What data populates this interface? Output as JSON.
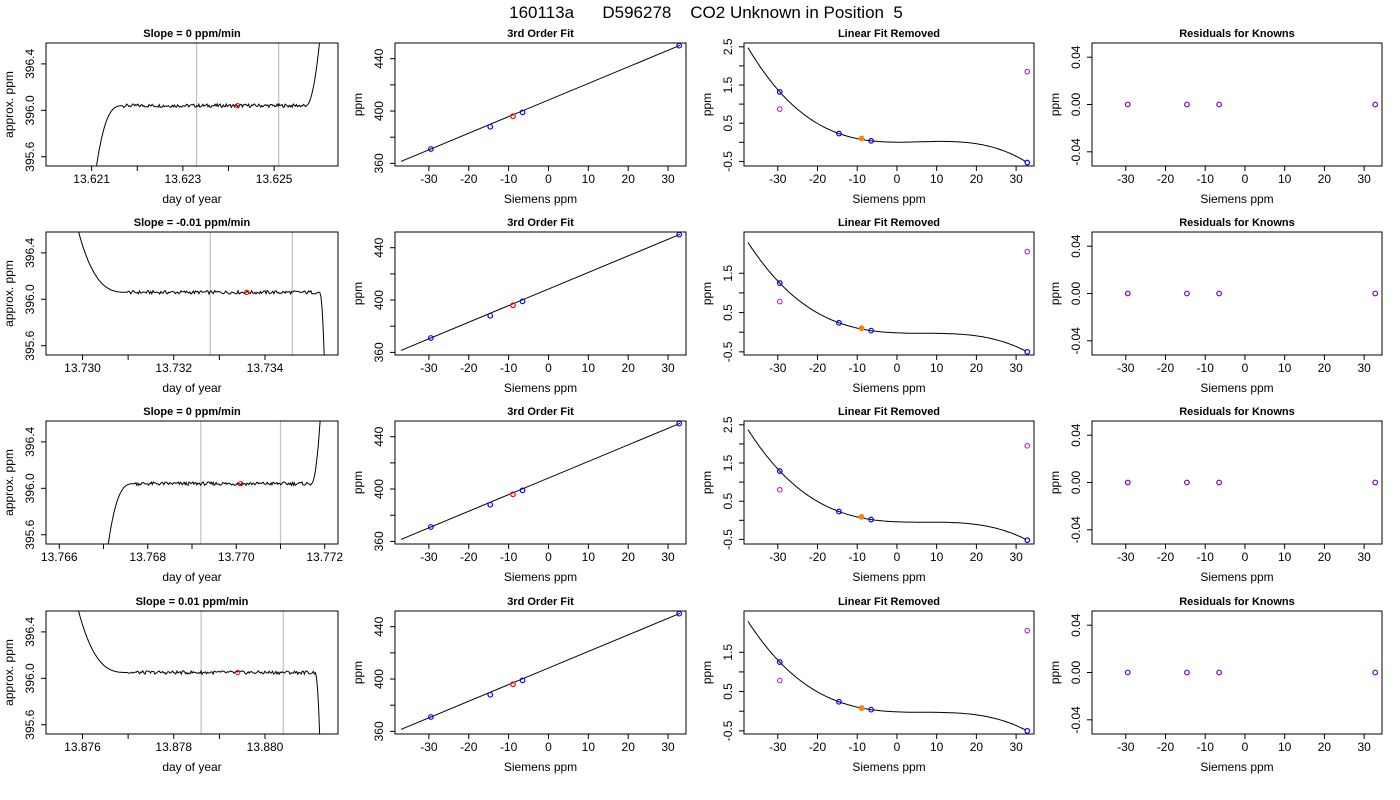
{
  "page_title": "160113a      D596278    CO2 Unknown in Position  5",
  "colors": {
    "trace": "#000000",
    "known_point": "#0000ff",
    "unknown_point": "#ff7f00",
    "marker_point": "#ff0000",
    "fit_point": "#cc00cc",
    "interval_line": "#c0c0c0"
  },
  "chart_data": [
    {
      "type": "line",
      "panel": "trace",
      "row": 1,
      "title": "Slope =  0  ppm/min",
      "xlabel": "day of year",
      "ylabel": "approx. ppm",
      "xlim": [
        13.62,
        13.6264
      ],
      "ylim": [
        395.52,
        396.58
      ],
      "xticks": [
        13.621,
        13.623,
        13.625
      ],
      "xtick_labels": [
        "13.621",
        "13.623",
        "13.625"
      ],
      "yticks": [
        395.6,
        396.0,
        396.4
      ],
      "ytick_labels": [
        "395.6",
        "396.0",
        "396.4"
      ],
      "trace": {
        "t0": 13.6211,
        "t_plateau": 13.6217,
        "t_end": 13.6257,
        "t_stop": 13.626,
        "level": 396.04,
        "start_value": 395.5,
        "end_behavior": "rise",
        "end_value": 396.6
      },
      "interval_lines": [
        13.6233,
        13.6251
      ],
      "marker": {
        "x": 13.6242,
        "y": 396.04
      }
    },
    {
      "type": "line",
      "panel": "trace",
      "row": 2,
      "title": "Slope =  -0.01  ppm/min",
      "xlabel": "day of year",
      "ylabel": "approx. ppm",
      "xlim": [
        13.7292,
        13.7356
      ],
      "ylim": [
        395.52,
        396.58
      ],
      "xticks": [
        13.73,
        13.732,
        13.734
      ],
      "xtick_labels": [
        "13.730",
        "13.732",
        "13.734"
      ],
      "yticks": [
        395.6,
        396.0,
        396.4
      ],
      "ytick_labels": [
        "395.6",
        "396.0",
        "396.4"
      ],
      "trace": {
        "t0": 13.7299,
        "t_plateau": 13.731,
        "t_end": 13.7352,
        "t_stop": 13.7353,
        "level": 396.06,
        "start_value": 396.6,
        "end_behavior": "drop",
        "end_value": 395.5
      },
      "interval_lines": [
        13.7328,
        13.7346
      ],
      "marker": {
        "x": 13.7336,
        "y": 396.06
      }
    },
    {
      "type": "line",
      "panel": "trace",
      "row": 3,
      "title": "Slope =  0  ppm/min",
      "xlabel": "day of year",
      "ylabel": "approx. ppm",
      "xlim": [
        13.7657,
        13.7723
      ],
      "ylim": [
        395.52,
        396.58
      ],
      "xticks": [
        13.766,
        13.768,
        13.77,
        13.772
      ],
      "xtick_labels": [
        "13.766",
        "13.768",
        "13.770",
        "13.772"
      ],
      "yticks": [
        395.6,
        396.0,
        396.4
      ],
      "ytick_labels": [
        "395.6",
        "396.0",
        "396.4"
      ],
      "trace": {
        "t0": 13.7671,
        "t_plateau": 13.7677,
        "t_end": 13.7717,
        "t_stop": 13.7719,
        "level": 396.04,
        "start_value": 395.5,
        "end_behavior": "rise",
        "end_value": 396.6
      },
      "interval_lines": [
        13.7692,
        13.771
      ],
      "marker": {
        "x": 13.7701,
        "y": 396.04
      }
    },
    {
      "type": "line",
      "panel": "trace",
      "row": 4,
      "title": "Slope =  0.01  ppm/min",
      "xlabel": "day of year",
      "ylabel": "approx. ppm",
      "xlim": [
        13.8752,
        13.8816
      ],
      "ylim": [
        395.52,
        396.58
      ],
      "xticks": [
        13.876,
        13.878,
        13.88
      ],
      "xtick_labels": [
        "13.876",
        "13.878",
        "13.880"
      ],
      "yticks": [
        395.6,
        396.0,
        396.4
      ],
      "ytick_labels": [
        "395.6",
        "396.0",
        "396.4"
      ],
      "trace": {
        "t0": 13.8759,
        "t_plateau": 13.877,
        "t_end": 13.8811,
        "t_stop": 13.8812,
        "level": 396.05,
        "start_value": 396.6,
        "end_behavior": "drop",
        "end_value": 395.5
      },
      "interval_lines": [
        13.8786,
        13.8804
      ],
      "marker": {
        "x": 13.8794,
        "y": 396.05
      }
    },
    {
      "type": "scatter",
      "panel": "fit",
      "row": 1,
      "title": "3rd Order Fit",
      "xlabel": "Siemens ppm",
      "ylabel": "ppm",
      "xlim": [
        -38.5,
        34.5
      ],
      "ylim": [
        358,
        452
      ],
      "xticks": [
        -30,
        -20,
        -10,
        0,
        10,
        20,
        30
      ],
      "xtick_labels": [
        "-30",
        "-20",
        "-10",
        "0",
        "10",
        "20",
        "30"
      ],
      "yticks": [
        360,
        400,
        440
      ],
      "ytick_labels": [
        "360",
        "400",
        "440"
      ],
      "fit_line": {
        "x0": -37.0,
        "x1": 33.0
      },
      "known_points": [
        {
          "x": -29.5,
          "y": 371
        },
        {
          "x": -14.6,
          "y": 388
        },
        {
          "x": -6.5,
          "y": 399
        },
        {
          "x": 32.8,
          "y": 450
        }
      ],
      "unknown_point": {
        "x": -8.9,
        "y": 396
      }
    },
    {
      "type": "scatter",
      "panel": "fit",
      "row": 2,
      "title": "3rd Order Fit",
      "xlabel": "Siemens ppm",
      "ylabel": "ppm",
      "xlim": [
        -38.5,
        34.5
      ],
      "ylim": [
        358,
        452
      ],
      "xticks": [
        -30,
        -20,
        -10,
        0,
        10,
        20,
        30
      ],
      "xtick_labels": [
        "-30",
        "-20",
        "-10",
        "0",
        "10",
        "20",
        "30"
      ],
      "yticks": [
        360,
        400,
        440
      ],
      "ytick_labels": [
        "360",
        "400",
        "440"
      ],
      "fit_line": {
        "x0": -37.0,
        "x1": 33.0
      },
      "known_points": [
        {
          "x": -29.5,
          "y": 371
        },
        {
          "x": -14.6,
          "y": 388
        },
        {
          "x": -6.5,
          "y": 399
        },
        {
          "x": 32.8,
          "y": 450
        }
      ],
      "unknown_point": {
        "x": -8.9,
        "y": 396
      }
    },
    {
      "type": "scatter",
      "panel": "fit",
      "row": 3,
      "title": "3rd Order Fit",
      "xlabel": "Siemens ppm",
      "ylabel": "ppm",
      "xlim": [
        -38.5,
        34.5
      ],
      "ylim": [
        358,
        452
      ],
      "xticks": [
        -30,
        -20,
        -10,
        0,
        10,
        20,
        30
      ],
      "xtick_labels": [
        "-30",
        "-20",
        "-10",
        "0",
        "10",
        "20",
        "30"
      ],
      "yticks": [
        360,
        400,
        440
      ],
      "ytick_labels": [
        "360",
        "400",
        "440"
      ],
      "fit_line": {
        "x0": -37.0,
        "x1": 33.0
      },
      "known_points": [
        {
          "x": -29.5,
          "y": 371
        },
        {
          "x": -14.6,
          "y": 388
        },
        {
          "x": -6.5,
          "y": 399
        },
        {
          "x": 32.8,
          "y": 450
        }
      ],
      "unknown_point": {
        "x": -8.9,
        "y": 396
      }
    },
    {
      "type": "scatter",
      "panel": "fit",
      "row": 4,
      "title": "3rd Order Fit",
      "xlabel": "Siemens ppm",
      "ylabel": "ppm",
      "xlim": [
        -38.5,
        34.5
      ],
      "ylim": [
        358,
        452
      ],
      "xticks": [
        -30,
        -20,
        -10,
        0,
        10,
        20,
        30
      ],
      "xtick_labels": [
        "-30",
        "-20",
        "-10",
        "0",
        "10",
        "20",
        "30"
      ],
      "yticks": [
        360,
        400,
        440
      ],
      "ytick_labels": [
        "360",
        "400",
        "440"
      ],
      "fit_line": {
        "x0": -37.0,
        "x1": 33.0
      },
      "known_points": [
        {
          "x": -29.5,
          "y": 371
        },
        {
          "x": -14.6,
          "y": 388
        },
        {
          "x": -6.5,
          "y": 399
        },
        {
          "x": 32.8,
          "y": 450
        }
      ],
      "unknown_point": {
        "x": -8.9,
        "y": 396
      }
    },
    {
      "type": "scatter",
      "panel": "linear_removed",
      "row": 1,
      "title": "Linear Fit Removed",
      "xlabel": "Siemens ppm",
      "ylabel": "ppm",
      "xlim": [
        -38.5,
        34.5
      ],
      "ylim": [
        -0.62,
        2.6
      ],
      "xticks": [
        -30,
        -20,
        -10,
        0,
        10,
        20,
        30
      ],
      "xtick_labels": [
        "-30",
        "-20",
        "-10",
        "0",
        "10",
        "20",
        "30"
      ],
      "yticks": [
        -0.5,
        0.5,
        1.5,
        2.5
      ],
      "ytick_labels": [
        "-0.5",
        "0.5",
        "1.5",
        "2.5"
      ],
      "curve": {
        "xmin": -37.5,
        "xmax": 32.5,
        "coeffs": [
          0.0,
          -0.0045,
          3e-06,
          2.12e-05
        ],
        "shift": -0.009
      },
      "known_points": [
        {
          "x": -29.5,
          "y": 1.32
        },
        {
          "x": -14.6,
          "y": 0.23
        },
        {
          "x": -6.5,
          "y": 0.04
        },
        {
          "x": 32.8,
          "y": -0.53
        }
      ],
      "fit_points": [
        {
          "x": -29.5,
          "y": 0.87
        },
        {
          "x": 32.8,
          "y": 1.85
        }
      ],
      "unknown_point": {
        "x": -8.9,
        "y": 0.1
      }
    },
    {
      "type": "scatter",
      "panel": "linear_removed",
      "row": 2,
      "title": "Linear Fit Removed",
      "xlabel": "Siemens ppm",
      "ylabel": "ppm",
      "xlim": [
        -38.5,
        34.5
      ],
      "ylim": [
        -0.58,
        2.55
      ],
      "xticks": [
        -30,
        -20,
        -10,
        0,
        10,
        20,
        30
      ],
      "xtick_labels": [
        "-30",
        "-20",
        "-10",
        "0",
        "10",
        "20",
        "30"
      ],
      "yticks": [
        -0.5,
        0.5,
        1.5
      ],
      "ytick_labels": [
        "-0.5",
        "0.5",
        "1.5"
      ],
      "curve": {
        "xmin": -37.5,
        "xmax": 32.5,
        "coeffs": [
          0.0,
          -0.0045,
          3e-06,
          2.08e-05
        ],
        "shift": -0.009
      },
      "known_points": [
        {
          "x": -29.5,
          "y": 1.25
        },
        {
          "x": -14.6,
          "y": 0.24
        },
        {
          "x": -6.5,
          "y": 0.04
        },
        {
          "x": 32.8,
          "y": -0.5
        }
      ],
      "fit_points": [
        {
          "x": -29.5,
          "y": 0.78
        },
        {
          "x": 32.8,
          "y": 2.05
        }
      ],
      "unknown_point": {
        "x": -8.9,
        "y": 0.1
      }
    },
    {
      "type": "scatter",
      "panel": "linear_removed",
      "row": 3,
      "title": "Linear Fit Removed",
      "xlabel": "Siemens ppm",
      "ylabel": "ppm",
      "xlim": [
        -38.5,
        34.5
      ],
      "ylim": [
        -0.62,
        2.6
      ],
      "xticks": [
        -30,
        -20,
        -10,
        0,
        10,
        20,
        30
      ],
      "xtick_labels": [
        "-30",
        "-20",
        "-10",
        "0",
        "10",
        "20",
        "30"
      ],
      "yticks": [
        -0.5,
        0.5,
        1.5,
        2.5
      ],
      "ytick_labels": [
        "-0.5",
        "0.5",
        "1.5",
        "2.5"
      ],
      "curve": {
        "xmin": -37.5,
        "xmax": 32.5,
        "coeffs": [
          0.0,
          -0.0045,
          3e-06,
          2.05e-05
        ],
        "shift": -0.009
      },
      "known_points": [
        {
          "x": -29.5,
          "y": 1.29
        },
        {
          "x": -14.6,
          "y": 0.23
        },
        {
          "x": -6.5,
          "y": 0.02
        },
        {
          "x": 32.8,
          "y": -0.52
        }
      ],
      "fit_points": [
        {
          "x": -29.5,
          "y": 0.8
        },
        {
          "x": 32.8,
          "y": 1.95
        }
      ],
      "unknown_point": {
        "x": -8.9,
        "y": 0.09
      }
    },
    {
      "type": "scatter",
      "panel": "linear_removed",
      "row": 4,
      "title": "Linear Fit Removed",
      "xlabel": "Siemens ppm",
      "ylabel": "ppm",
      "xlim": [
        -38.5,
        34.5
      ],
      "ylim": [
        -0.58,
        2.55
      ],
      "xticks": [
        -30,
        -20,
        -10,
        0,
        10,
        20,
        30
      ],
      "xtick_labels": [
        "-30",
        "-20",
        "-10",
        "0",
        "10",
        "20",
        "30"
      ],
      "yticks": [
        -0.5,
        0.5,
        1.5
      ],
      "ytick_labels": [
        "-0.5",
        "0.5",
        "1.5"
      ],
      "curve": {
        "xmin": -37.5,
        "xmax": 32.5,
        "coeffs": [
          0.0,
          -0.0045,
          3e-06,
          2.08e-05
        ],
        "shift": -0.009
      },
      "known_points": [
        {
          "x": -29.5,
          "y": 1.25
        },
        {
          "x": -14.6,
          "y": 0.24
        },
        {
          "x": -6.5,
          "y": 0.04
        },
        {
          "x": 32.8,
          "y": -0.5
        }
      ],
      "fit_points": [
        {
          "x": -29.5,
          "y": 0.78
        },
        {
          "x": 32.8,
          "y": 2.05
        }
      ],
      "unknown_point": {
        "x": -8.9,
        "y": 0.08
      }
    },
    {
      "type": "scatter",
      "panel": "residuals",
      "row": 1,
      "title": "Residuals for Knowns",
      "xlabel": "Siemens ppm",
      "ylabel": "ppm",
      "xlim": [
        -38.5,
        34.5
      ],
      "ylim": [
        -0.052,
        0.052
      ],
      "xticks": [
        -30,
        -20,
        -10,
        0,
        10,
        20,
        30
      ],
      "xtick_labels": [
        "-30",
        "-20",
        "-10",
        "0",
        "10",
        "20",
        "30"
      ],
      "yticks": [
        -0.04,
        0.0,
        0.04
      ],
      "ytick_labels": [
        "-0.04",
        "0.00",
        "0.04"
      ],
      "points": [
        {
          "x": -29.5,
          "y": 0
        },
        {
          "x": -14.6,
          "y": 0
        },
        {
          "x": -6.5,
          "y": 0
        },
        {
          "x": 32.8,
          "y": 0
        }
      ]
    },
    {
      "type": "scatter",
      "panel": "residuals",
      "row": 2,
      "title": "Residuals for Knowns",
      "xlabel": "Siemens ppm",
      "ylabel": "ppm",
      "xlim": [
        -38.5,
        34.5
      ],
      "ylim": [
        -0.052,
        0.052
      ],
      "xticks": [
        -30,
        -20,
        -10,
        0,
        10,
        20,
        30
      ],
      "xtick_labels": [
        "-30",
        "-20",
        "-10",
        "0",
        "10",
        "20",
        "30"
      ],
      "yticks": [
        -0.04,
        0.0,
        0.04
      ],
      "ytick_labels": [
        "-0.04",
        "0.00",
        "0.04"
      ],
      "points": [
        {
          "x": -29.5,
          "y": 0
        },
        {
          "x": -14.6,
          "y": 0
        },
        {
          "x": -6.5,
          "y": 0
        },
        {
          "x": 32.8,
          "y": 0
        }
      ]
    },
    {
      "type": "scatter",
      "panel": "residuals",
      "row": 3,
      "title": "Residuals for Knowns",
      "xlabel": "Siemens ppm",
      "ylabel": "ppm",
      "xlim": [
        -38.5,
        34.5
      ],
      "ylim": [
        -0.052,
        0.052
      ],
      "xticks": [
        -30,
        -20,
        -10,
        0,
        10,
        20,
        30
      ],
      "xtick_labels": [
        "-30",
        "-20",
        "-10",
        "0",
        "10",
        "20",
        "30"
      ],
      "yticks": [
        -0.04,
        0.0,
        0.04
      ],
      "ytick_labels": [
        "-0.04",
        "0.00",
        "0.04"
      ],
      "points": [
        {
          "x": -29.5,
          "y": 0
        },
        {
          "x": -14.6,
          "y": 0
        },
        {
          "x": -6.5,
          "y": 0
        },
        {
          "x": 32.8,
          "y": 0
        }
      ]
    },
    {
      "type": "scatter",
      "panel": "residuals",
      "row": 4,
      "title": "Residuals for Knowns",
      "xlabel": "Siemens ppm",
      "ylabel": "ppm",
      "xlim": [
        -38.5,
        34.5
      ],
      "ylim": [
        -0.052,
        0.052
      ],
      "xticks": [
        -30,
        -20,
        -10,
        0,
        10,
        20,
        30
      ],
      "xtick_labels": [
        "-30",
        "-20",
        "-10",
        "0",
        "10",
        "20",
        "30"
      ],
      "yticks": [
        -0.04,
        0.0,
        0.04
      ],
      "ytick_labels": [
        "-0.04",
        "0.00",
        "0.04"
      ],
      "points": [
        {
          "x": -29.5,
          "y": 0
        },
        {
          "x": -14.6,
          "y": 0
        },
        {
          "x": -6.5,
          "y": 0
        },
        {
          "x": 32.8,
          "y": 0
        }
      ]
    }
  ]
}
